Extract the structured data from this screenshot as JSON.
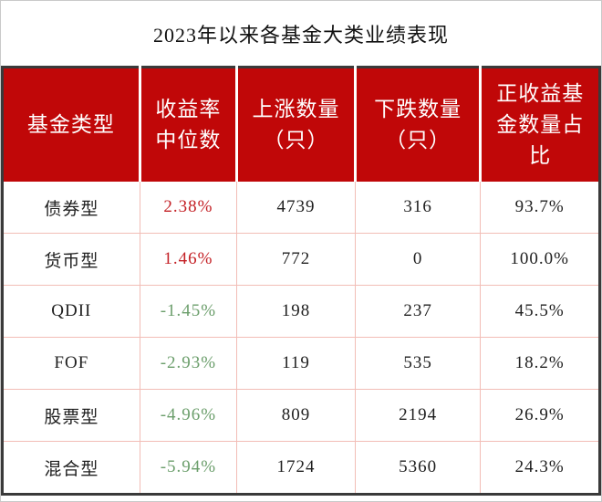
{
  "colors": {
    "page-bg": "#ffffff",
    "page-border": "#c9c9c9",
    "title-text": "#111111",
    "header-bg": "#c00708",
    "header-text": "#ffffff",
    "outer-border": "#3a3a3a",
    "grid-line": "#f2bdb6",
    "body-text": "#1f1f1f",
    "positive": "#c42126",
    "negative": "#6b9e6b"
  },
  "chart_data": {
    "type": "table",
    "title": "2023年以来各基金大类业绩表现",
    "columns": [
      {
        "key": "fund_type",
        "label": "基金类型"
      },
      {
        "key": "median_return",
        "label": "收益率\n中位数"
      },
      {
        "key": "up_count",
        "label": "上涨数量\n（只）"
      },
      {
        "key": "down_count",
        "label": "下跌数量\n（只）"
      },
      {
        "key": "positive_ratio",
        "label": "正收益基\n金数量占\n比"
      }
    ],
    "rows": [
      {
        "fund_type": "债券型",
        "median_return": "2.38%",
        "trend": "positive",
        "up_count": "4739",
        "down_count": "316",
        "positive_ratio": "93.7%"
      },
      {
        "fund_type": "货币型",
        "median_return": "1.46%",
        "trend": "positive",
        "up_count": "772",
        "down_count": "0",
        "positive_ratio": "100.0%"
      },
      {
        "fund_type": "QDII",
        "median_return": "-1.45%",
        "trend": "negative",
        "up_count": "198",
        "down_count": "237",
        "positive_ratio": "45.5%"
      },
      {
        "fund_type": "FOF",
        "median_return": "-2.93%",
        "trend": "negative",
        "up_count": "119",
        "down_count": "535",
        "positive_ratio": "18.2%"
      },
      {
        "fund_type": "股票型",
        "median_return": "-4.96%",
        "trend": "negative",
        "up_count": "809",
        "down_count": "2194",
        "positive_ratio": "26.9%"
      },
      {
        "fund_type": "混合型",
        "median_return": "-5.94%",
        "trend": "negative",
        "up_count": "1724",
        "down_count": "5360",
        "positive_ratio": "24.3%"
      }
    ]
  }
}
